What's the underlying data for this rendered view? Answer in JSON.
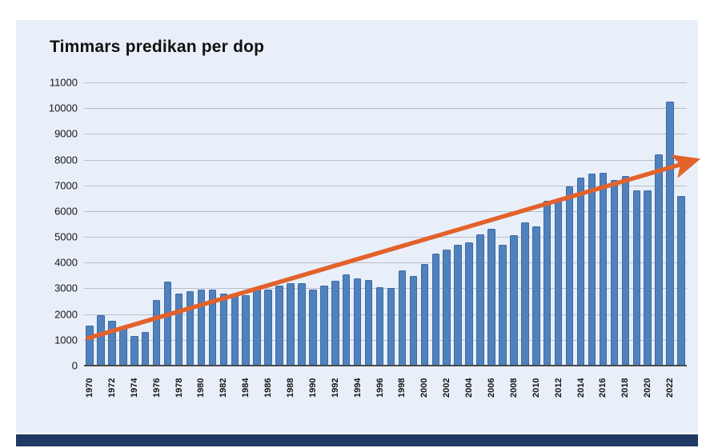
{
  "page": {
    "panel_bg": "#e9eff8",
    "footer_bar_color": "#1f3864"
  },
  "chart_data": {
    "type": "bar",
    "title": "Timmars predikan per dop",
    "xlabel": "",
    "ylabel": "",
    "ylim": [
      0,
      11000
    ],
    "ytick_step": 1000,
    "grid": true,
    "legend": "none",
    "bar_color": "#4f81bd",
    "x": [
      1970,
      1971,
      1972,
      1973,
      1974,
      1975,
      1976,
      1977,
      1978,
      1979,
      1980,
      1981,
      1982,
      1983,
      1984,
      1985,
      1986,
      1987,
      1988,
      1989,
      1990,
      1991,
      1992,
      1993,
      1994,
      1995,
      1996,
      1997,
      1998,
      1999,
      2000,
      2001,
      2002,
      2003,
      2004,
      2005,
      2006,
      2007,
      2008,
      2009,
      2010,
      2011,
      2012,
      2013,
      2014,
      2015,
      2016,
      2017,
      2018,
      2019,
      2020,
      2021,
      2022,
      2023
    ],
    "values": [
      1550,
      1950,
      1750,
      1500,
      1150,
      1300,
      2550,
      3250,
      2800,
      2900,
      2950,
      2950,
      2800,
      2700,
      2750,
      3050,
      2950,
      3100,
      3200,
      3200,
      2950,
      3100,
      3300,
      3550,
      3400,
      3330,
      3050,
      3030,
      3700,
      3470,
      3950,
      4350,
      4500,
      4700,
      4800,
      5100,
      5300,
      4700,
      5050,
      5550,
      5400,
      6400,
      6400,
      6950,
      7300,
      7450,
      7500,
      7200,
      7350,
      6800,
      6800,
      8200,
      10250,
      6600
    ],
    "xtick_labels": [
      "1970",
      "1972",
      "1974",
      "1976",
      "1978",
      "1980",
      "1982",
      "1984",
      "1986",
      "1988",
      "1990",
      "1992",
      "1994",
      "1996",
      "1998",
      "2000",
      "2002",
      "2004",
      "2006",
      "2008",
      "2010",
      "2012",
      "2014",
      "2016",
      "2018",
      "2020",
      "2022"
    ],
    "trend_arrow": {
      "color": "#e2622b",
      "start": {
        "x_year": 1969.7,
        "value": 1050
      },
      "end": {
        "x_year": 2024.4,
        "value": 8000
      }
    }
  }
}
